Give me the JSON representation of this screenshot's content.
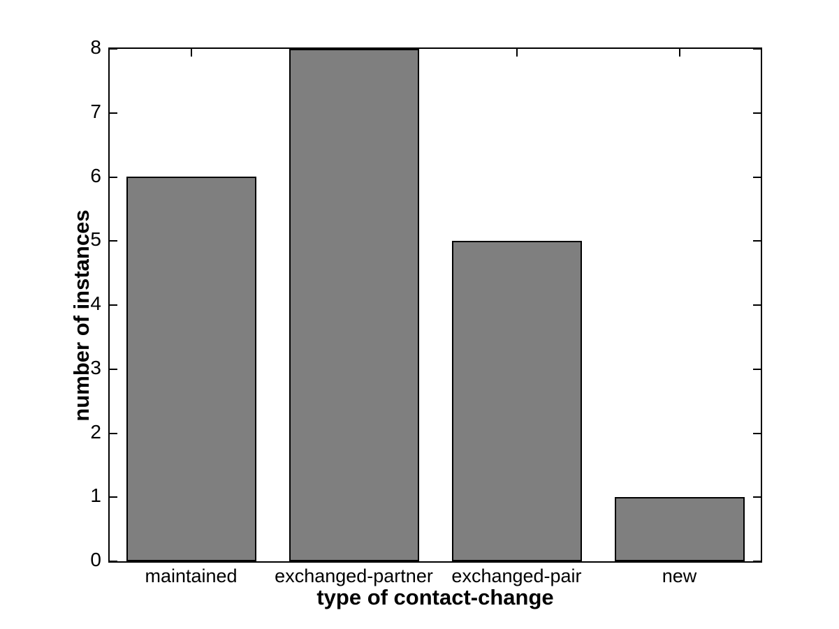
{
  "chart_data": {
    "type": "bar",
    "title": "",
    "categories": [
      "maintained",
      "exchanged-partner",
      "exchanged-pair",
      "new"
    ],
    "values": [
      6,
      8,
      5,
      1
    ],
    "xlabel": "type of contact-change",
    "ylabel": "number of instances",
    "ylim": [
      0,
      8
    ],
    "yticks": [
      0,
      1,
      2,
      3,
      4,
      5,
      6,
      7,
      8
    ],
    "bar_color": "#7f7f7f",
    "bar_edge_color": "#000000",
    "axis_color": "#000000",
    "background_color": "#ffffff",
    "grid": false,
    "legend": null
  }
}
